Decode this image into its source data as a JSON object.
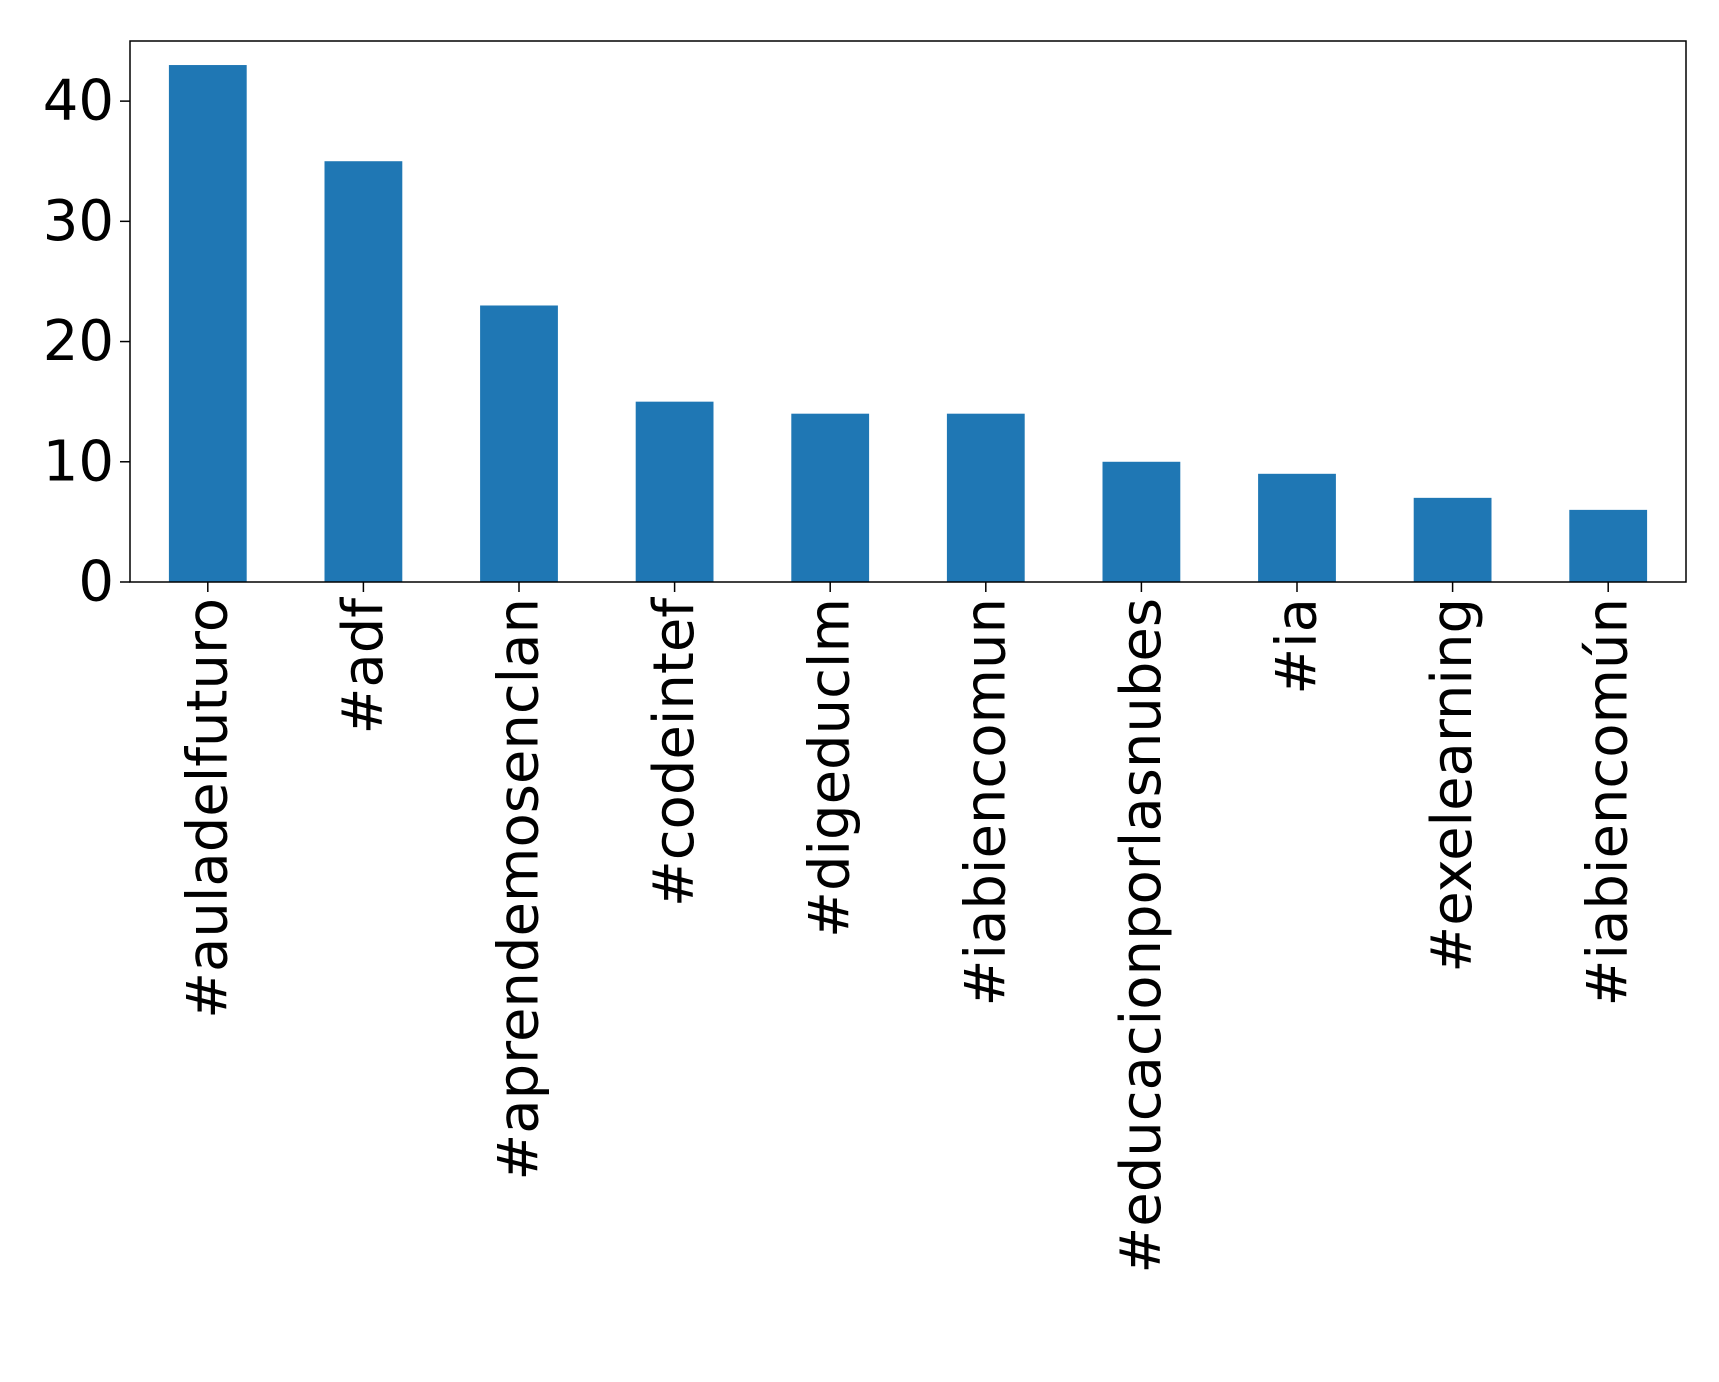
{
  "chart_data": {
    "type": "bar",
    "categories": [
      "#auladelfuturo",
      "#adf",
      "#aprendemosenclan",
      "#codeintef",
      "#digeduclm",
      "#iabiencomun",
      "#educacionporlasnubes",
      "#ia",
      "#exelearning",
      "#iabiencomún"
    ],
    "values": [
      43,
      35,
      23,
      15,
      14,
      14,
      10,
      9,
      7,
      6
    ],
    "title": "",
    "xlabel": "",
    "ylabel": "",
    "ylim": [
      0,
      45
    ],
    "yticks": [
      "0",
      "10",
      "20",
      "30",
      "40"
    ],
    "grid": false,
    "bar_color": "#1f77b4"
  }
}
